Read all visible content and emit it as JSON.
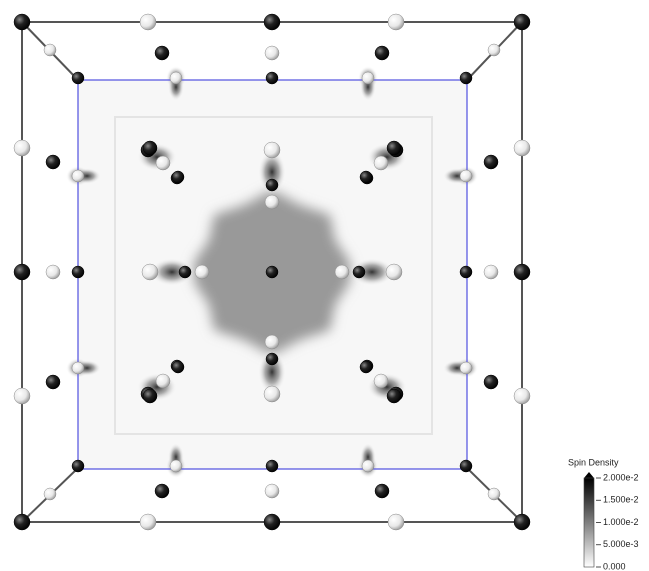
{
  "legend": {
    "title": "Spin Density",
    "ticks": [
      {
        "value": 0.02,
        "label": "2.000e-2"
      },
      {
        "value": 0.015,
        "label": "1.500e-2"
      },
      {
        "value": 0.01,
        "label": "1.000e-2"
      },
      {
        "value": 0.005,
        "label": "5.000e-3"
      },
      {
        "value": 0,
        "label": "0.000"
      }
    ]
  }
}
